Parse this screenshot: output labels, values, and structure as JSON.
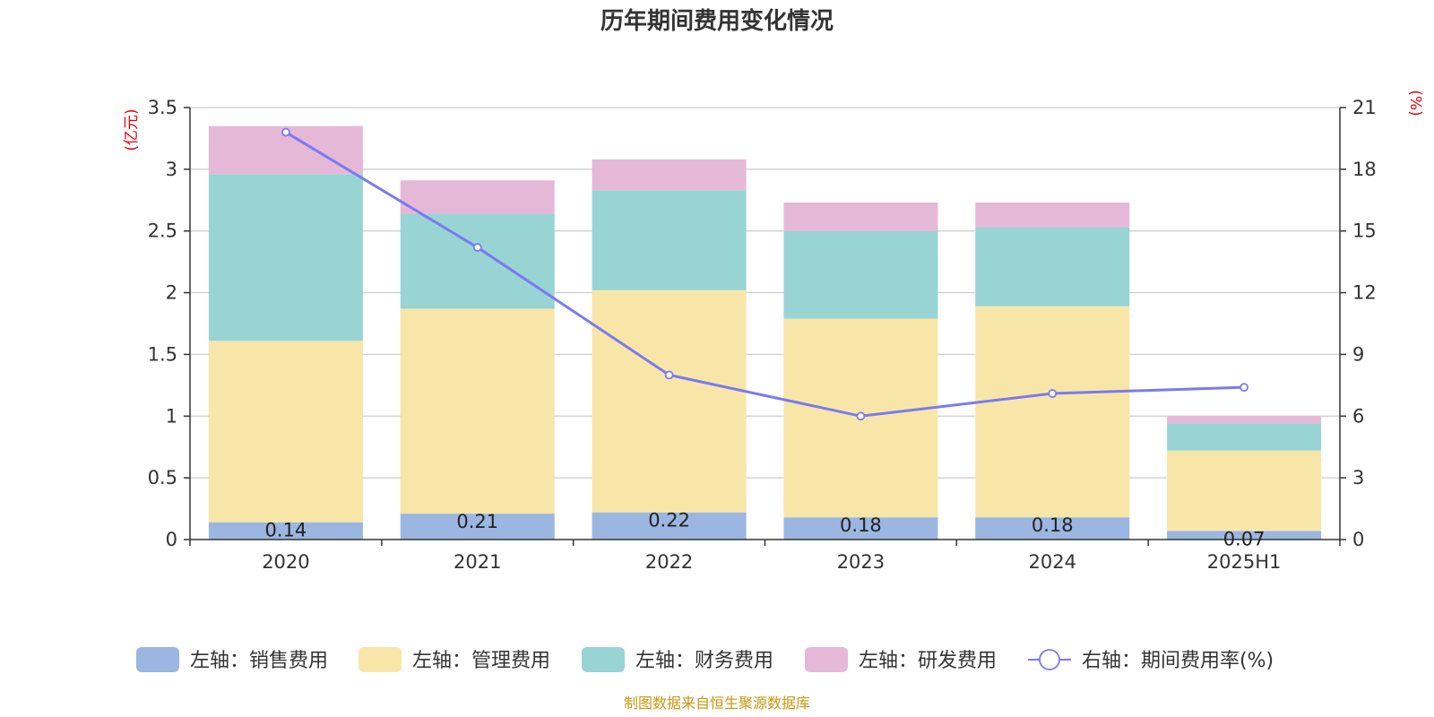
{
  "title": "历年期间费用变化情况",
  "source": "制图数据来自恒生聚源数据库",
  "colors": {
    "sales": "#9bb6e0",
    "admin": "#f8e6a8",
    "finance": "#98d4d4",
    "rd": "#e6b8d8",
    "line": "#7a7af0",
    "unit": "#e8000b",
    "source": "#c8960f"
  },
  "chart_data": {
    "type": "bar",
    "stacked": true,
    "title": "历年期间费用变化情况",
    "left_unit": "(亿元)",
    "right_unit": "(%)",
    "categories": [
      "2020",
      "2021",
      "2022",
      "2023",
      "2024",
      "2025H1"
    ],
    "ylim_left": [
      0,
      3.5
    ],
    "yticks_left": [
      "0",
      "0.5",
      "1",
      "1.5",
      "2",
      "2.5",
      "3",
      "3.5"
    ],
    "ylim_right": [
      0,
      21
    ],
    "yticks_right": [
      "0",
      "3",
      "6",
      "9",
      "12",
      "15",
      "18",
      "21"
    ],
    "grid": true,
    "legend_position": "bottom",
    "series": [
      {
        "name": "左轴：销售费用",
        "axis": "left",
        "type": "bar",
        "color": "#9bb6e0",
        "values": [
          0.14,
          0.21,
          0.22,
          0.18,
          0.18,
          0.07
        ],
        "labels": [
          "0.14",
          "0.21",
          "0.22",
          "0.18",
          "0.18",
          "0.07"
        ]
      },
      {
        "name": "左轴：管理费用",
        "axis": "left",
        "type": "bar",
        "color": "#f8e6a8",
        "values": [
          1.47,
          1.66,
          1.8,
          1.61,
          1.71,
          0.65
        ]
      },
      {
        "name": "左轴：财务费用",
        "axis": "left",
        "type": "bar",
        "color": "#98d4d4",
        "values": [
          1.35,
          0.77,
          0.81,
          0.71,
          0.64,
          0.22
        ]
      },
      {
        "name": "左轴：研发费用",
        "axis": "left",
        "type": "bar",
        "color": "#e6b8d8",
        "values": [
          0.39,
          0.27,
          0.25,
          0.23,
          0.2,
          0.06
        ]
      },
      {
        "name": "右轴：期间费用率(%)",
        "axis": "right",
        "type": "line",
        "color": "#7a7af0",
        "values": [
          19.8,
          14.2,
          8.0,
          6.0,
          7.1,
          7.4
        ]
      }
    ]
  }
}
